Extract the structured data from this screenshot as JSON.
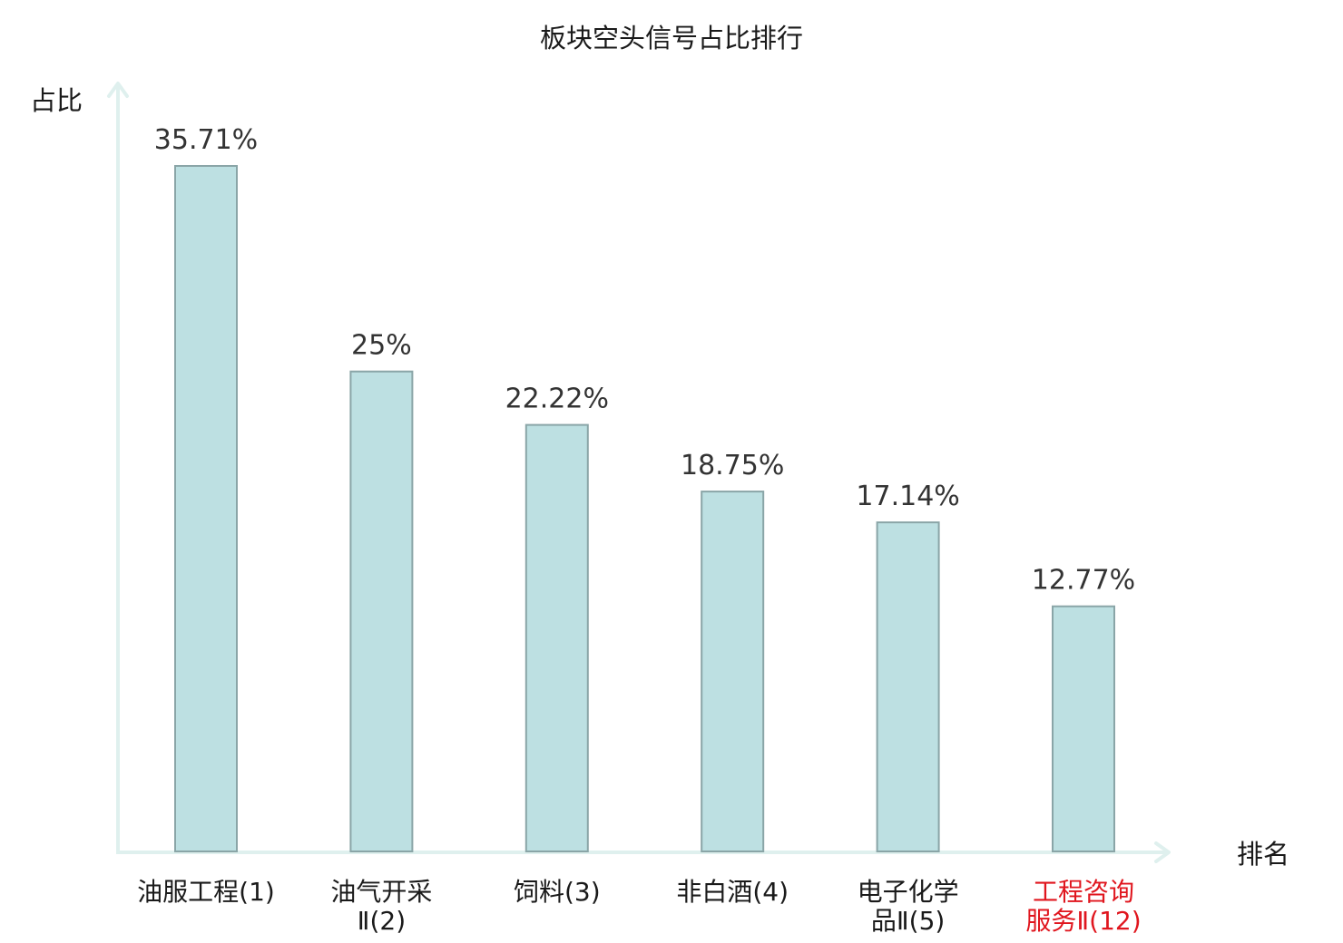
{
  "chart_data": {
    "type": "bar",
    "title": "板块空头信号占比排行",
    "xlabel": "排名",
    "ylabel": "占比",
    "categories": [
      [
        "油服工程(1)"
      ],
      [
        "油气开采",
        "Ⅱ(2)"
      ],
      [
        "饲料(3)"
      ],
      [
        "非白酒(4)"
      ],
      [
        "电子化学",
        "品Ⅱ(5)"
      ],
      [
        "工程咨询",
        "服务Ⅱ(12)"
      ]
    ],
    "values": [
      35.71,
      25,
      22.22,
      18.75,
      17.14,
      12.77
    ],
    "value_labels": [
      "35.71%",
      "25%",
      "22.22%",
      "18.75%",
      "17.14%",
      "12.77%"
    ],
    "highlight_index": 5,
    "ylim": [
      0,
      35.71
    ],
    "grid": false,
    "legend": "none",
    "colors": {
      "bar_fill": "#bde0e2",
      "bar_stroke": "#8aa5a7",
      "axis": "#dff0ee",
      "label_default": "#1a1a1a",
      "label_highlight": "#e0161e"
    }
  }
}
